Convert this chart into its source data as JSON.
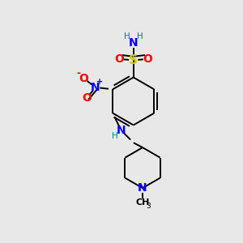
{
  "background_color": "#e8e8e8",
  "atom_colors": {
    "C": "#000000",
    "H": "#008080",
    "N": "#0000ff",
    "O": "#ff0000",
    "S": "#cccc00"
  },
  "figsize": [
    3.0,
    3.0
  ],
  "dpi": 100
}
